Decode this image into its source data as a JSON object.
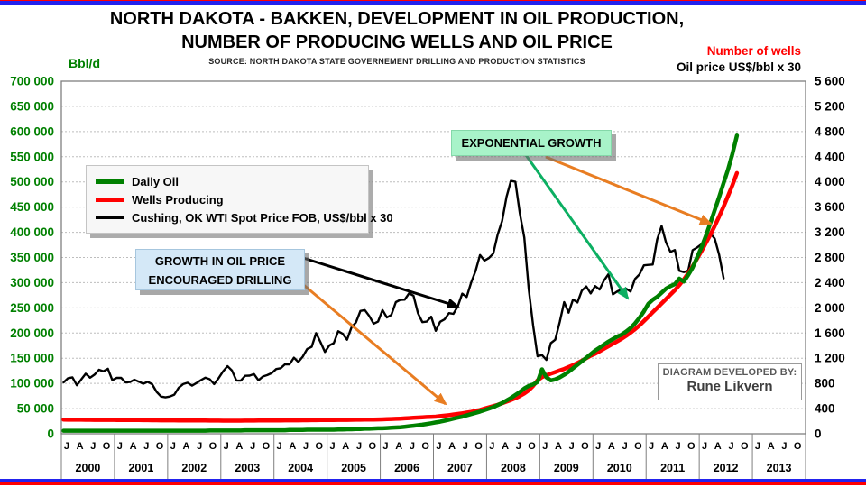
{
  "title": {
    "line1": "NORTH DAKOTA - BAKKEN, DEVELOPMENT IN OIL PRODUCTION,",
    "line2": "NUMBER OF PRODUCING WELLS AND OIL PRICE",
    "source": "SOURCE: NORTH DAKOTA STATE GOVERNEMENT DRILLING AND PRODUCTION STATISTICS"
  },
  "axis_titles": {
    "left_unit": "Bbl/d",
    "right_line1": "Number of wells",
    "right_line2": "Oil price US$/bbl x 30"
  },
  "legend": {
    "items": [
      {
        "label": "Daily Oil",
        "color": "#008000"
      },
      {
        "label": "Wells Producing",
        "color": "#ff0000"
      },
      {
        "label": "Cushing, OK WTI Spot Price FOB, US$/bbl x 30",
        "color": "#000000"
      }
    ]
  },
  "annotations": {
    "exponential": "EXPONENTIAL GROWTH",
    "growth_line1": "GROWTH IN OIL PRICE",
    "growth_line2": "ENCOURAGED DRILLING"
  },
  "attribution": {
    "line1": "DIAGRAM DEVELOPED BY:",
    "line2": "Rune Likvern"
  },
  "colors": {
    "oil_green": "#008000",
    "wells_red": "#ff0000",
    "price_black": "#000000",
    "arrow_orange": "#e87d22",
    "arrow_green": "#0caf62",
    "grid_gray": "#bdbdbd",
    "border_gray": "#7f7f7f",
    "frame_blue": "#2222ee",
    "frame_red": "#ff0000"
  },
  "chart_data": {
    "type": "line",
    "title": "NORTH DAKOTA - BAKKEN, DEVELOPMENT IN OIL PRODUCTION, NUMBER OF PRODUCING WELLS AND OIL PRICE",
    "grid": true,
    "legend_position": "upper-left",
    "x_axis": {
      "years": [
        2000,
        2001,
        2002,
        2003,
        2004,
        2005,
        2006,
        2007,
        2008,
        2009,
        2010,
        2011,
        2012,
        2013
      ],
      "month_tick_labels": [
        "J",
        "A",
        "J",
        "O"
      ]
    },
    "y_left": {
      "label": "Bbl/d",
      "min": 0,
      "max": 700000,
      "step": 50000,
      "ticks": [
        0,
        50000,
        100000,
        150000,
        200000,
        250000,
        300000,
        350000,
        400000,
        450000,
        500000,
        550000,
        600000,
        650000,
        700000
      ]
    },
    "y_right": {
      "label": "Number of wells / Oil price US$/bbl x 30",
      "min": 0,
      "max": 5600,
      "step": 400,
      "ticks": [
        0,
        400,
        800,
        1200,
        1600,
        2000,
        2400,
        2800,
        3200,
        3600,
        4000,
        4400,
        4800,
        5200,
        5600
      ]
    },
    "series": [
      {
        "name": "Daily Oil",
        "axis": "left",
        "color": "#008000",
        "start": "2000-01",
        "unit": "Bbl/d",
        "monthly_values": [
          6000,
          6000,
          6000,
          6000,
          6000,
          6000,
          6000,
          6000,
          6000,
          6000,
          6000,
          6000,
          6000,
          6000,
          6000,
          6000,
          6000,
          6000,
          6000,
          6000,
          6000,
          6000,
          6000,
          6000,
          6000,
          6000,
          6000,
          6000,
          6000,
          6000,
          6000,
          6000,
          6000,
          6500,
          6500,
          6500,
          6500,
          6500,
          6500,
          6500,
          6500,
          7000,
          7000,
          7000,
          7000,
          7000,
          7000,
          7000,
          7000,
          7000,
          7000,
          7500,
          7500,
          7500,
          7500,
          8000,
          8000,
          8000,
          8000,
          8000,
          8000,
          8000,
          8500,
          8500,
          9000,
          9000,
          9500,
          9500,
          10000,
          10000,
          10500,
          11000,
          11000,
          11500,
          12000,
          12500,
          13000,
          14000,
          15000,
          16000,
          17000,
          18000,
          19500,
          21000,
          22500,
          24000,
          26000,
          28000,
          30000,
          32000,
          34000,
          36500,
          39000,
          41500,
          44000,
          47000,
          50000,
          53000,
          57000,
          61000,
          66000,
          71000,
          77000,
          83000,
          90000,
          95000,
          98000,
          103000,
          128000,
          112000,
          106000,
          108000,
          112000,
          117000,
          123000,
          130000,
          137000,
          144000,
          151000,
          158000,
          165000,
          171000,
          177000,
          183000,
          188000,
          193000,
          197000,
          203000,
          210000,
          219000,
          230000,
          243000,
          258000,
          266000,
          272000,
          280000,
          288000,
          293000,
          297000,
          308000,
          302000,
          315000,
          330000,
          350000,
          370000,
          393000,
          418000,
          444000,
          470000,
          498000,
          525000,
          556000,
          592000
        ]
      },
      {
        "name": "Wells Producing",
        "axis": "right",
        "color": "#ff0000",
        "start": "2000-01",
        "unit": "wells",
        "monthly_values": [
          225,
          224,
          224,
          223,
          223,
          222,
          222,
          221,
          221,
          220,
          220,
          220,
          219,
          219,
          218,
          218,
          217,
          217,
          216,
          216,
          215,
          215,
          214,
          214,
          213,
          213,
          212,
          212,
          211,
          211,
          210,
          210,
          210,
          209,
          209,
          209,
          208,
          208,
          208,
          208,
          208,
          209,
          209,
          209,
          210,
          210,
          211,
          211,
          212,
          212,
          213,
          213,
          214,
          214,
          215,
          215,
          216,
          216,
          217,
          218,
          218,
          219,
          220,
          220,
          221,
          222,
          223,
          224,
          225,
          226,
          227,
          228,
          229,
          232,
          235,
          238,
          241,
          245,
          249,
          253,
          258,
          262,
          266,
          269,
          272,
          280,
          288,
          297,
          306,
          315,
          325,
          336,
          348,
          362,
          380,
          400,
          420,
          440,
          460,
          485,
          510,
          535,
          565,
          600,
          640,
          690,
          760,
          850,
          900,
          930,
          955,
          980,
          1005,
          1030,
          1060,
          1090,
          1125,
          1160,
          1200,
          1240,
          1270,
          1310,
          1350,
          1390,
          1430,
          1470,
          1510,
          1555,
          1605,
          1660,
          1720,
          1790,
          1860,
          1930,
          2000,
          2070,
          2140,
          2210,
          2280,
          2360,
          2450,
          2550,
          2660,
          2780,
          2900,
          3030,
          3160,
          3300,
          3450,
          3610,
          3780,
          3950,
          4140
        ]
      },
      {
        "name": "Cushing, OK WTI Spot Price FOB, US$/bbl x 30",
        "axis": "right",
        "color": "#000000",
        "start": "2000-01",
        "unit": "US$/bbl x 30",
        "monthly_values": [
          816,
          882,
          897,
          771,
          864,
          954,
          891,
          939,
          1017,
          993,
          1032,
          852,
          888,
          888,
          816,
          822,
          858,
          828,
          795,
          825,
          786,
          666,
          591,
          579,
          591,
          621,
          732,
          789,
          810,
          765,
          807,
          852,
          891,
          867,
          789,
          882,
          990,
          1074,
          1005,
          846,
          843,
          921,
          924,
          948,
          849,
          909,
          933,
          966,
          1029,
          1041,
          1104,
          1101,
          1209,
          1140,
          1224,
          1347,
          1380,
          1599,
          1455,
          1299,
          1404,
          1440,
          1629,
          1590,
          1494,
          1692,
          1770,
          1950,
          1965,
          1872,
          1749,
          1782,
          1965,
          1848,
          1887,
          2091,
          2127,
          2130,
          2232,
          2193,
          1917,
          1773,
          1782,
          1860,
          1635,
          1779,
          1818,
          1917,
          1905,
          2025,
          2226,
          2172,
          2397,
          2586,
          2838,
          2751,
          2790,
          2862,
          3165,
          3378,
          3762,
          4017,
          4002,
          3498,
          3117,
          2301,
          1719,
          1230,
          1251,
          1173,
          1440,
          1494,
          1776,
          2091,
          1923,
          2133,
          2085,
          2274,
          2340,
          2229,
          2346,
          2292,
          2436,
          2535,
          2214,
          2262,
          2292,
          2304,
          2259,
          2457,
          2529,
          2676,
          2682,
          2688,
          3087,
          3300,
          3039,
          2889,
          2919,
          2589,
          2568,
          2592,
          2916,
          2958,
          3009,
          3069,
          3186,
          3099,
          2841,
          2469
        ]
      }
    ]
  }
}
